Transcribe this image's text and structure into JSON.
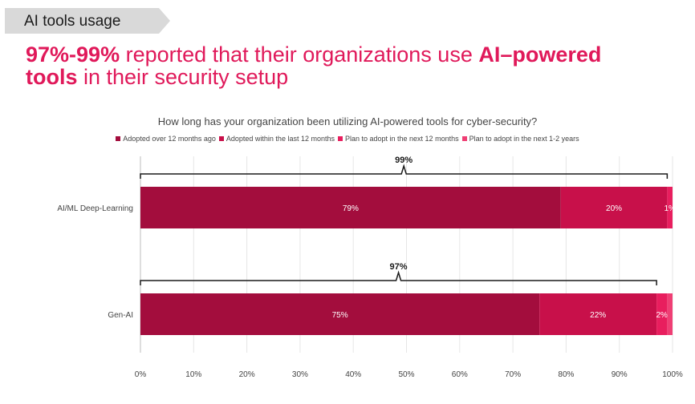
{
  "section_tag": "AI tools usage",
  "headline": {
    "bold1": "97%-99%",
    "text1": " reported that their organizations use ",
    "bold2": "AI–powered",
    "bold3": "tools",
    "text2": " in their security setup"
  },
  "colors": {
    "accent": "#e0195a",
    "series": [
      "#a30d3d",
      "#c8104a",
      "#e81e5e",
      "#ef3e74"
    ]
  },
  "chart_data": {
    "type": "bar",
    "orientation": "horizontal",
    "stacked": true,
    "title": "How long has your organization been utilizing AI-powered tools for cyber-security?",
    "legend_position": "top",
    "categories": [
      "AI/ML Deep-Learning",
      "Gen-AI"
    ],
    "series": [
      {
        "name": "Adopted over 12 months ago",
        "values": [
          79,
          75
        ],
        "labels": [
          "79%",
          "75%"
        ]
      },
      {
        "name": "Adopted within the last 12 months",
        "values": [
          20,
          22
        ],
        "labels": [
          "20%",
          "22%"
        ]
      },
      {
        "name": "Plan to adopt in the next 12 months",
        "values": [
          1,
          2
        ],
        "labels": [
          "1%",
          "2%"
        ]
      },
      {
        "name": "Plan to adopt in the next 1-2 years",
        "values": [
          0,
          1
        ],
        "labels": [
          "",
          ""
        ]
      }
    ],
    "brackets": [
      {
        "category": "AI/ML Deep-Learning",
        "label": "99%",
        "from": 0,
        "to": 99
      },
      {
        "category": "Gen-AI",
        "label": "97%",
        "from": 0,
        "to": 97
      }
    ],
    "xlim": [
      0,
      100
    ],
    "xticks": [
      0,
      10,
      20,
      30,
      40,
      50,
      60,
      70,
      80,
      90,
      100
    ],
    "xtick_labels": [
      "0%",
      "10%",
      "20%",
      "30%",
      "40%",
      "50%",
      "60%",
      "70%",
      "80%",
      "90%",
      "100%"
    ],
    "grid": true
  }
}
